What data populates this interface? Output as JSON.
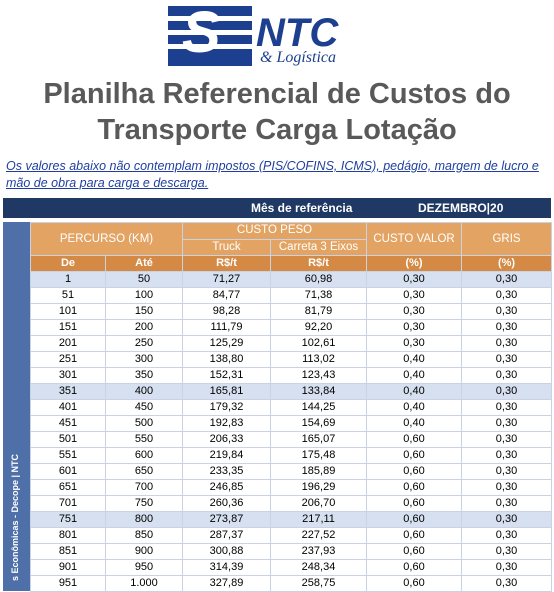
{
  "logo": {
    "name": "NTC",
    "tagline": "& Logística"
  },
  "title": {
    "line1": "Planilha Referencial de Custos do",
    "line2": "Transporte Carga Lotação"
  },
  "note": "Os valores abaixo não contemplam impostos (PIS/COFINS, ICMS), pedágio, margem de lucro e mão de obra para carga e descarga.",
  "reference": {
    "label": "Mês de referência",
    "value": "DEZEMBRO|20"
  },
  "side_label": "s Econômicas - Decope | NTC",
  "table": {
    "headers": {
      "percurso": "PERCURSO (KM)",
      "custo_peso": "CUSTO PESO",
      "truck": "Truck",
      "carreta": "Carreta 3 Eixos",
      "custo_valor": "CUSTO VALOR",
      "gris": "GRIS"
    },
    "subheaders": [
      "De",
      "Até",
      "R$/t",
      "R$/t",
      "(%)",
      "(%)"
    ],
    "rows": [
      [
        "1",
        "50",
        "71,27",
        "60,98",
        "0,30",
        "0,30"
      ],
      [
        "51",
        "100",
        "84,77",
        "71,38",
        "0,30",
        "0,30"
      ],
      [
        "101",
        "150",
        "98,28",
        "81,79",
        "0,30",
        "0,30"
      ],
      [
        "151",
        "200",
        "111,79",
        "92,20",
        "0,30",
        "0,30"
      ],
      [
        "201",
        "250",
        "125,29",
        "102,61",
        "0,30",
        "0,30"
      ],
      [
        "251",
        "300",
        "138,80",
        "113,02",
        "0,40",
        "0,30"
      ],
      [
        "301",
        "350",
        "152,31",
        "123,43",
        "0,40",
        "0,30"
      ],
      [
        "351",
        "400",
        "165,81",
        "133,84",
        "0,40",
        "0,30"
      ],
      [
        "401",
        "450",
        "179,32",
        "144,25",
        "0,40",
        "0,30"
      ],
      [
        "451",
        "500",
        "192,83",
        "154,69",
        "0,40",
        "0,30"
      ],
      [
        "501",
        "550",
        "206,33",
        "165,07",
        "0,60",
        "0,30"
      ],
      [
        "551",
        "600",
        "219,84",
        "175,48",
        "0,60",
        "0,30"
      ],
      [
        "601",
        "650",
        "233,35",
        "185,89",
        "0,60",
        "0,30"
      ],
      [
        "651",
        "700",
        "246,85",
        "196,29",
        "0,60",
        "0,30"
      ],
      [
        "701",
        "750",
        "260,36",
        "206,70",
        "0,60",
        "0,30"
      ],
      [
        "751",
        "800",
        "273,87",
        "217,11",
        "0,60",
        "0,30"
      ],
      [
        "801",
        "850",
        "287,37",
        "227,52",
        "0,60",
        "0,30"
      ],
      [
        "851",
        "900",
        "300,88",
        "237,93",
        "0,60",
        "0,30"
      ],
      [
        "901",
        "950",
        "314,39",
        "248,34",
        "0,60",
        "0,30"
      ],
      [
        "951",
        "1.000",
        "327,89",
        "258,75",
        "0,60",
        "0,30"
      ]
    ]
  }
}
